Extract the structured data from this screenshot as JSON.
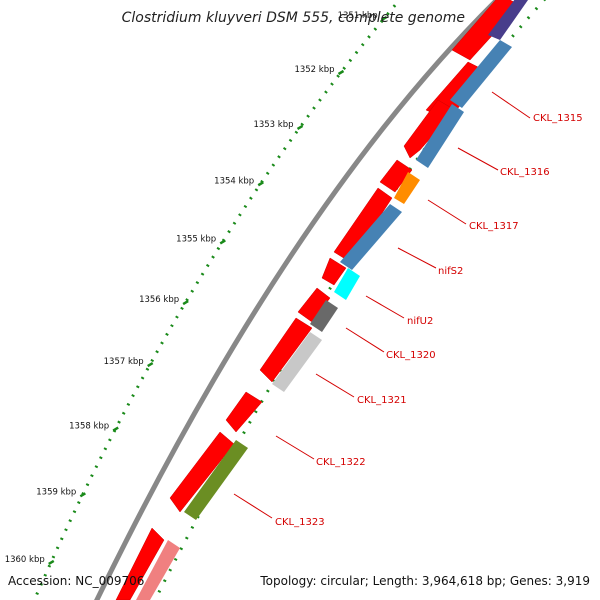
{
  "title": "Clostridium kluyveri DSM 555, complete genome",
  "footer": {
    "accession_label": "Accession:",
    "accession": "NC_009706",
    "topology_text": "Topology: circular; Length: 3,964,618 bp; Genes: 3,919"
  },
  "kbp_ticks": [
    {
      "label": "1351 kbp",
      "t": 0.055
    },
    {
      "label": "1352 kbp",
      "t": 0.155
    },
    {
      "label": "1353 kbp",
      "t": 0.253
    },
    {
      "label": "1354 kbp",
      "t": 0.35
    },
    {
      "label": "1355 kbp",
      "t": 0.447
    },
    {
      "label": "1356 kbp",
      "t": 0.545
    },
    {
      "label": "1357 kbp",
      "t": 0.642
    },
    {
      "label": "1358 kbp",
      "t": 0.74
    },
    {
      "label": "1359 kbp",
      "t": 0.837
    },
    {
      "label": "1360 kbp",
      "t": 0.934
    }
  ],
  "gene_labels": [
    {
      "text": "CKL_1315"
    },
    {
      "text": "CKL_1316"
    },
    {
      "text": "CKL_1317"
    },
    {
      "text": "nifS2"
    },
    {
      "text": "nifU2"
    },
    {
      "text": "CKL_1320"
    },
    {
      "text": "CKL_1321"
    },
    {
      "text": "CKL_1322"
    },
    {
      "text": "CKL_1323"
    }
  ],
  "colors": {
    "backbone": "#888888",
    "red_gene": "#ff0000",
    "steel_blue": "#4682b4",
    "dark_slate": "#483d8b",
    "orange": "#ff8c00",
    "cyan": "#00ffff",
    "dark_gray": "#696969",
    "light_gray": "#c8c8c8",
    "olive": "#6b8e23",
    "light_red": "#f08080",
    "dotted_green": "#1a8a1a",
    "label_red": "#d40000"
  }
}
